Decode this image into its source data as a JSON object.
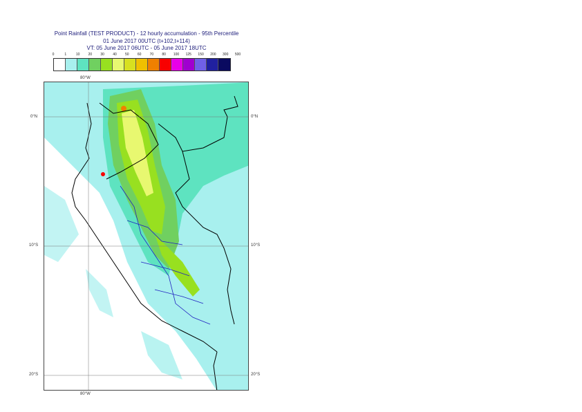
{
  "title": {
    "line1": "Point Rainfall (TEST PRODUCT) - 12 hourly accumulation - 95th Percentile",
    "line2": "01 June 2017 00UTC (t+102,t+114)",
    "line3": "VT: 05 June 2017 06UTC - 05 June 2017 18UTC"
  },
  "legend": {
    "labels": [
      "0",
      "1",
      "10",
      "20",
      "30",
      "40",
      "50",
      "60",
      "70",
      "80",
      "100",
      "125",
      "150",
      "200",
      "300",
      "500"
    ],
    "colors": [
      "#ffffff",
      "#a8f0ee",
      "#5ee3c0",
      "#70d060",
      "#98e020",
      "#e8f870",
      "#d8e020",
      "#f0c000",
      "#f08000",
      "#f80000",
      "#e800e8",
      "#a000d0",
      "#7060e8",
      "#2020a0",
      "#0a0a60"
    ]
  },
  "axes": {
    "lon_top": "80°W",
    "lon_bottom": "80°W",
    "lat_left": [
      "0°N",
      "10°S",
      "20°S"
    ],
    "lat_right": [
      "0°N",
      "10°S",
      "20°S"
    ]
  }
}
